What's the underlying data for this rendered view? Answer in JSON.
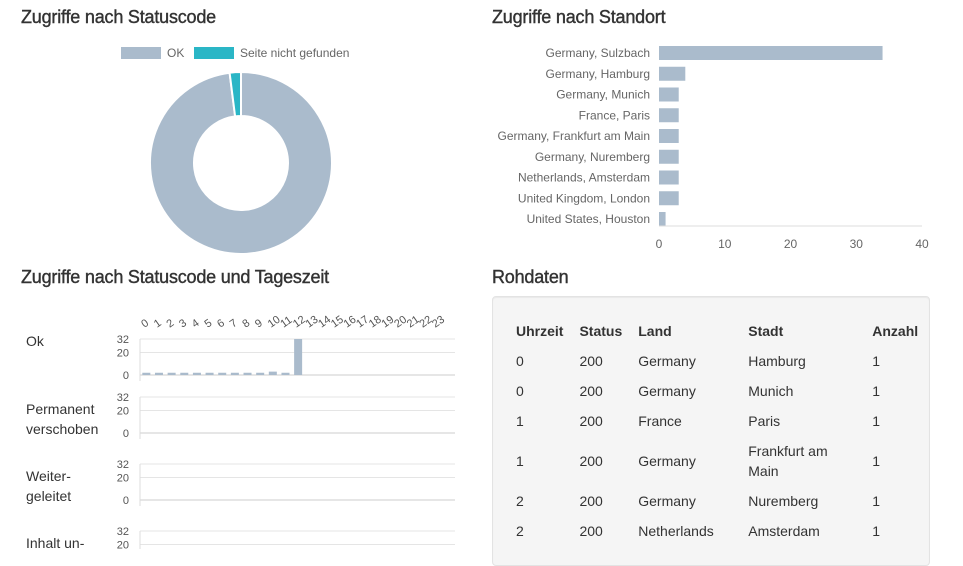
{
  "sections": {
    "status_title": "Zugriffe nach Statuscode",
    "location_title": "Zugriffe nach Standort",
    "timeofday_title": "Zugriffe nach Statuscode und Tageszeit",
    "raw_title": "Rohdaten"
  },
  "colors": {
    "ok": "#aabbcc",
    "not_found": "#2ab6c6",
    "bar": "#aabbcc"
  },
  "chart_data": [
    {
      "type": "pie",
      "title": "Zugriffe nach Statuscode",
      "legend_position": "top",
      "series": [
        {
          "name": "OK",
          "value": 98
        },
        {
          "name": "Seite nicht gefunden",
          "value": 2
        }
      ]
    },
    {
      "type": "bar",
      "orientation": "horizontal",
      "title": "Zugriffe nach Standort",
      "categories": [
        "Germany, Sulzbach",
        "Germany, Hamburg",
        "Germany, Munich",
        "France, Paris",
        "Germany, Frankfurt am Main",
        "Germany, Nuremberg",
        "Netherlands, Amsterdam",
        "United Kingdom, London",
        "United States, Houston"
      ],
      "values": [
        34,
        4,
        3,
        3,
        3,
        3,
        3,
        3,
        1
      ],
      "xlim": [
        0,
        40
      ],
      "xticks": [
        "0",
        "10",
        "20",
        "30",
        "40"
      ]
    },
    {
      "type": "bar",
      "title": "Zugriffe nach Statuscode und Tageszeit",
      "hours": [
        "0",
        "1",
        "2",
        "3",
        "4",
        "5",
        "6",
        "7",
        "8",
        "9",
        "10",
        "11",
        "12",
        "13",
        "14",
        "15",
        "16",
        "17",
        "18",
        "19",
        "20",
        "21",
        "22",
        "23"
      ],
      "yticks": [
        "32",
        "20",
        "0"
      ],
      "ylim": [
        0,
        32
      ],
      "rows": [
        {
          "label": "Ok",
          "values": [
            2,
            2,
            2,
            2,
            2,
            2,
            2,
            2,
            2,
            2,
            3,
            2,
            32,
            0,
            0,
            0,
            0,
            0,
            0,
            0,
            0,
            0,
            0,
            0
          ]
        },
        {
          "label": "Permanent verschoben",
          "values": [
            0,
            0,
            0,
            0,
            0,
            0,
            0,
            0,
            0,
            0,
            0,
            0,
            0,
            0,
            0,
            0,
            0,
            0,
            0,
            0,
            0,
            0,
            0,
            0
          ]
        },
        {
          "label": "Weiter-geleitet",
          "values": [
            0,
            0,
            0,
            0,
            0,
            0,
            0,
            0,
            0,
            0,
            0,
            0,
            0,
            0,
            0,
            0,
            0,
            0,
            0,
            0,
            0,
            0,
            0,
            0
          ]
        },
        {
          "label": "Inhalt un-",
          "values": [
            0,
            0,
            0,
            0,
            0,
            0,
            0,
            0,
            0,
            0,
            0,
            0,
            0,
            0,
            0,
            0,
            0,
            0,
            0,
            0,
            0,
            0,
            0,
            0
          ]
        }
      ]
    }
  ],
  "raw_table": {
    "headers": [
      "Uhrzeit",
      "Status",
      "Land",
      "Stadt",
      "Anzahl"
    ],
    "rows": [
      [
        "0",
        "200",
        "Germany",
        "Hamburg",
        "1"
      ],
      [
        "0",
        "200",
        "Germany",
        "Munich",
        "1"
      ],
      [
        "1",
        "200",
        "France",
        "Paris",
        "1"
      ],
      [
        "1",
        "200",
        "Germany",
        "Frankfurt am Main",
        "1"
      ],
      [
        "2",
        "200",
        "Germany",
        "Nuremberg",
        "1"
      ],
      [
        "2",
        "200",
        "Netherlands",
        "Amsterdam",
        "1"
      ]
    ]
  }
}
